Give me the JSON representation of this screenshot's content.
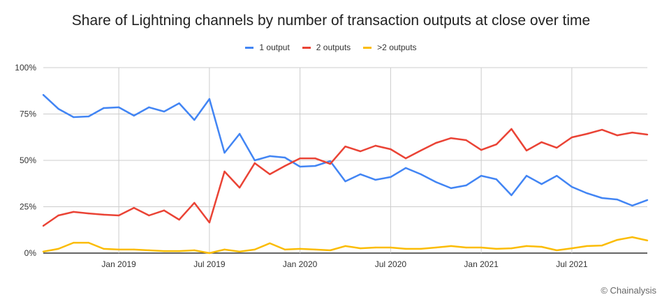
{
  "chart_data": {
    "type": "line",
    "title": "Share of Lightning channels by number of transaction outputs at close over time",
    "xlabel": "",
    "ylabel": "",
    "x": [
      "2018-08",
      "2018-09",
      "2018-10",
      "2018-11",
      "2018-12",
      "2019-01",
      "2019-02",
      "2019-03",
      "2019-04",
      "2019-05",
      "2019-06",
      "2019-07",
      "2019-08",
      "2019-09",
      "2019-10",
      "2019-11",
      "2019-12",
      "2020-01",
      "2020-02",
      "2020-03",
      "2020-04",
      "2020-05",
      "2020-06",
      "2020-07",
      "2020-08",
      "2020-09",
      "2020-10",
      "2020-11",
      "2020-12",
      "2021-01",
      "2021-02",
      "2021-03",
      "2021-04",
      "2021-05",
      "2021-06",
      "2021-07",
      "2021-08",
      "2021-09",
      "2021-10",
      "2021-11",
      "2021-12"
    ],
    "x_ticks": [
      {
        "x": "2019-01",
        "label": "Jan 2019"
      },
      {
        "x": "2019-07",
        "label": "Jul 2019"
      },
      {
        "x": "2020-01",
        "label": "Jan 2020"
      },
      {
        "x": "2020-07",
        "label": "Jul 2020"
      },
      {
        "x": "2021-01",
        "label": "Jan 2021"
      },
      {
        "x": "2021-07",
        "label": "Jul 2021"
      }
    ],
    "ylim": [
      0,
      100
    ],
    "y_ticks": [
      {
        "v": 0,
        "label": "0%"
      },
      {
        "v": 25,
        "label": "25%"
      },
      {
        "v": 50,
        "label": "50%"
      },
      {
        "v": 75,
        "label": "75%"
      },
      {
        "v": 100,
        "label": "100%"
      }
    ],
    "grid": true,
    "legend_position": "top",
    "series": [
      {
        "name": "1 output",
        "color": "#4285f4",
        "values": [
          85.3,
          77.8,
          73.3,
          73.7,
          78.2,
          78.6,
          74.1,
          78.6,
          76.3,
          80.8,
          71.8,
          83.1,
          54.1,
          64.3,
          50,
          52.3,
          51.5,
          46.6,
          47,
          49.6,
          38.7,
          42.5,
          39.5,
          41,
          45.9,
          42.5,
          38.3,
          35,
          36.5,
          41.7,
          39.8,
          31.2,
          41.7,
          37.2,
          41.7,
          35.7,
          32.3,
          29.7,
          28.9,
          25.6,
          28.6
        ]
      },
      {
        "name": "2 outputs",
        "color": "#ea4335",
        "values": [
          14.7,
          20.3,
          22.2,
          21.4,
          20.7,
          20.3,
          24.4,
          20.3,
          23,
          18,
          27.1,
          16.5,
          44,
          35.3,
          48.5,
          42.5,
          47,
          51.1,
          51.1,
          48.1,
          57.5,
          54.9,
          57.9,
          56,
          51.1,
          55.3,
          59.4,
          62,
          60.9,
          55.6,
          58.6,
          66.9,
          55.3,
          59.8,
          56.8,
          62.4,
          64.3,
          66.5,
          63.5,
          65,
          63.9
        ]
      },
      {
        "name": ">2 outputs",
        "color": "#fbbc04",
        "values": [
          0.8,
          2.3,
          5.6,
          5.6,
          2.3,
          1.9,
          1.9,
          1.5,
          1.1,
          1.1,
          1.5,
          0,
          1.9,
          0.8,
          1.9,
          5.3,
          1.9,
          2.3,
          1.9,
          1.5,
          3.8,
          2.6,
          3,
          3,
          2.3,
          2.3,
          3,
          3.8,
          3,
          3,
          2.3,
          2.6,
          3.8,
          3.4,
          1.5,
          2.6,
          3.8,
          4.1,
          7.1,
          8.6,
          6.8
        ]
      }
    ]
  },
  "credit": "© Chainalysis"
}
